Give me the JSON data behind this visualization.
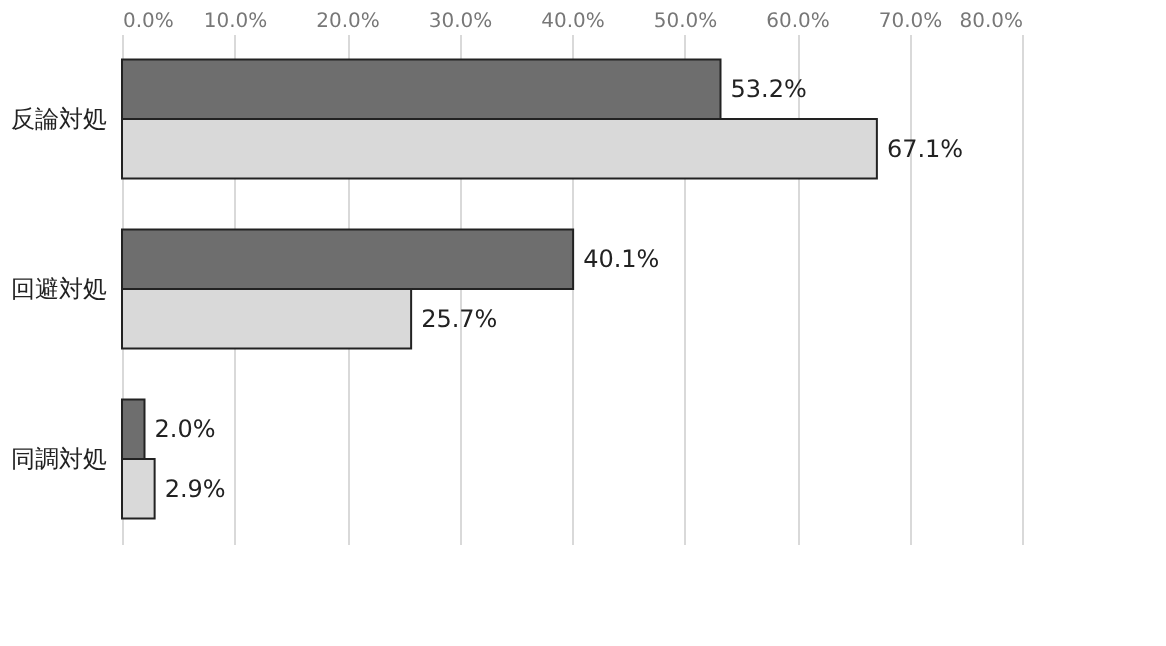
{
  "chart_data": {
    "type": "bar",
    "orientation": "horizontal",
    "categories": [
      "反論対処",
      "回避対処",
      "同調対処"
    ],
    "series": [
      {
        "color": "#6e6e6e",
        "values": [
          53.2,
          40.1,
          2.0
        ],
        "value_labels": [
          "53.2%",
          "40.1%",
          "2.0%"
        ]
      },
      {
        "color": "#d9d9d9",
        "values": [
          67.1,
          25.7,
          2.9
        ],
        "value_labels": [
          "67.1%",
          "25.7%",
          "2.9%"
        ]
      }
    ],
    "xlim": [
      0,
      80
    ],
    "xticks": [
      {
        "value": 0,
        "label": "0.0%"
      },
      {
        "value": 10,
        "label": "10.0%"
      },
      {
        "value": 20,
        "label": "20.0%"
      },
      {
        "value": 30,
        "label": "30.0%"
      },
      {
        "value": 40,
        "label": "40.0%"
      },
      {
        "value": 50,
        "label": "50.0%"
      },
      {
        "value": 60,
        "label": "60.0%"
      },
      {
        "value": 70,
        "label": "70.0%"
      },
      {
        "value": 80,
        "label": "80.0%"
      }
    ],
    "grid": true,
    "legend": false
  }
}
